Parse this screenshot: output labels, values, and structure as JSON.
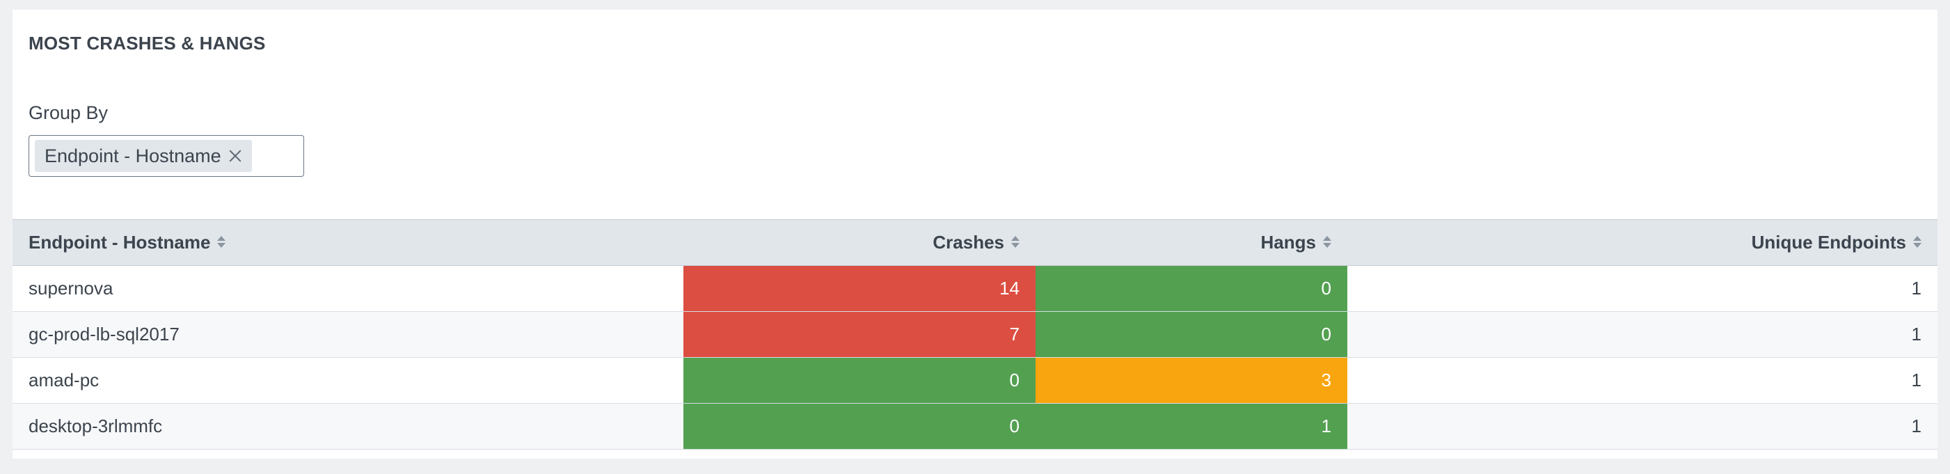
{
  "panel": {
    "title": "MOST CRASHES & HANGS",
    "group_by": {
      "label": "Group By",
      "selected_chip": "Endpoint - Hostname"
    }
  },
  "table": {
    "columns": [
      {
        "label": "Endpoint - Hostname",
        "align": "left"
      },
      {
        "label": "Crashes",
        "align": "right"
      },
      {
        "label": "Hangs",
        "align": "right"
      },
      {
        "label": "Unique Endpoints",
        "align": "right"
      }
    ],
    "rows": [
      {
        "hostname": "supernova",
        "crashes": "14",
        "hangs": "0",
        "unique": "1",
        "crashes_status": "red",
        "hangs_status": "green"
      },
      {
        "hostname": "gc-prod-lb-sql2017",
        "crashes": "7",
        "hangs": "0",
        "unique": "1",
        "crashes_status": "red",
        "hangs_status": "green"
      },
      {
        "hostname": "amad-pc",
        "crashes": "0",
        "hangs": "3",
        "unique": "1",
        "crashes_status": "green",
        "hangs_status": "orange"
      },
      {
        "hostname": "desktop-3rlmmfc",
        "crashes": "0",
        "hangs": "1",
        "unique": "1",
        "crashes_status": "green",
        "hangs_status": "green"
      }
    ]
  },
  "colors": {
    "red": "#dc4e41",
    "green": "#53a051",
    "orange": "#f8a50f",
    "header_bg": "#e1e6eb"
  },
  "icons": {
    "sort": "sort-icon",
    "chip_remove": "close-icon"
  }
}
